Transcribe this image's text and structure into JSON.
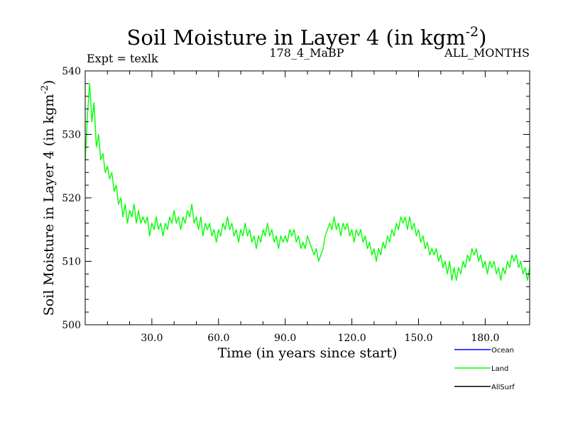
{
  "chart_data": {
    "type": "line",
    "title": "Soil Moisture in Layer 4 (in kgm",
    "title_superscript": "-2",
    "title_close": ")",
    "subtitle_left": "Expt = texlk",
    "subtitle_center": "178_4_MaBP",
    "subtitle_right": "ALL_MONTHS",
    "xlabel": "Time (in years since start)",
    "ylabel": "Soil Moisture in Layer 4 (in kgm",
    "ylabel_superscript": "-2",
    "ylabel_close": ")",
    "xlim": [
      0,
      200
    ],
    "ylim": [
      500,
      540
    ],
    "x_ticks": [
      30,
      60,
      90,
      120,
      150,
      180
    ],
    "x_tick_labels": [
      "30.0",
      "60.0",
      "90.0",
      "120.0",
      "150.0",
      "180.0"
    ],
    "y_ticks": [
      500,
      510,
      520,
      530,
      540
    ],
    "y_tick_labels": [
      "500",
      "510",
      "520",
      "530",
      "540"
    ],
    "grid": false,
    "legend": [
      {
        "name": "Ocean",
        "color": "#0000ff"
      },
      {
        "name": "Land",
        "color": "#00ff00"
      },
      {
        "name": "AllSurf",
        "color": "#000000"
      }
    ],
    "series": [
      {
        "name": "Land",
        "color": "#00ff00",
        "x_start": 0,
        "x_step": 1,
        "values": [
          526,
          533,
          538,
          532,
          535,
          528,
          530,
          526,
          527,
          524,
          525,
          523,
          524,
          521,
          522,
          519,
          520,
          517,
          519,
          516,
          518,
          517,
          519,
          516,
          518,
          516,
          517,
          516,
          517,
          514,
          516,
          515,
          517,
          515,
          516,
          514,
          516,
          515,
          517,
          516,
          518,
          516,
          517,
          515,
          517,
          516,
          518,
          517,
          519,
          516,
          517,
          515,
          517,
          514,
          516,
          515,
          516,
          514,
          515,
          513,
          515,
          514,
          516,
          515,
          517,
          515,
          516,
          514,
          515,
          513,
          515,
          514,
          516,
          514,
          515,
          513,
          514,
          512,
          514,
          513,
          515,
          514,
          516,
          514,
          515,
          513,
          514,
          512,
          514,
          513,
          514,
          513,
          515,
          514,
          515,
          513,
          514,
          512,
          513,
          512,
          514,
          513,
          512,
          511,
          512,
          510,
          511,
          512,
          514,
          515,
          516,
          515,
          517,
          515,
          516,
          514,
          516,
          515,
          516,
          514,
          515,
          513,
          515,
          514,
          515,
          513,
          514,
          512,
          513,
          511,
          512,
          510,
          512,
          511,
          513,
          512,
          514,
          513,
          515,
          514,
          516,
          515,
          517,
          516,
          517,
          515,
          517,
          515,
          516,
          514,
          515,
          513,
          514,
          512,
          513,
          511,
          512,
          511,
          512,
          510,
          511,
          509,
          510,
          508,
          510,
          507,
          509,
          507,
          509,
          508,
          510,
          509,
          511,
          510,
          512,
          511,
          512,
          510,
          511,
          509,
          510,
          508,
          510,
          509,
          510,
          508,
          509,
          507,
          509,
          508,
          510,
          509,
          511,
          510,
          511,
          509,
          510,
          508,
          509,
          507,
          509
        ]
      }
    ]
  }
}
